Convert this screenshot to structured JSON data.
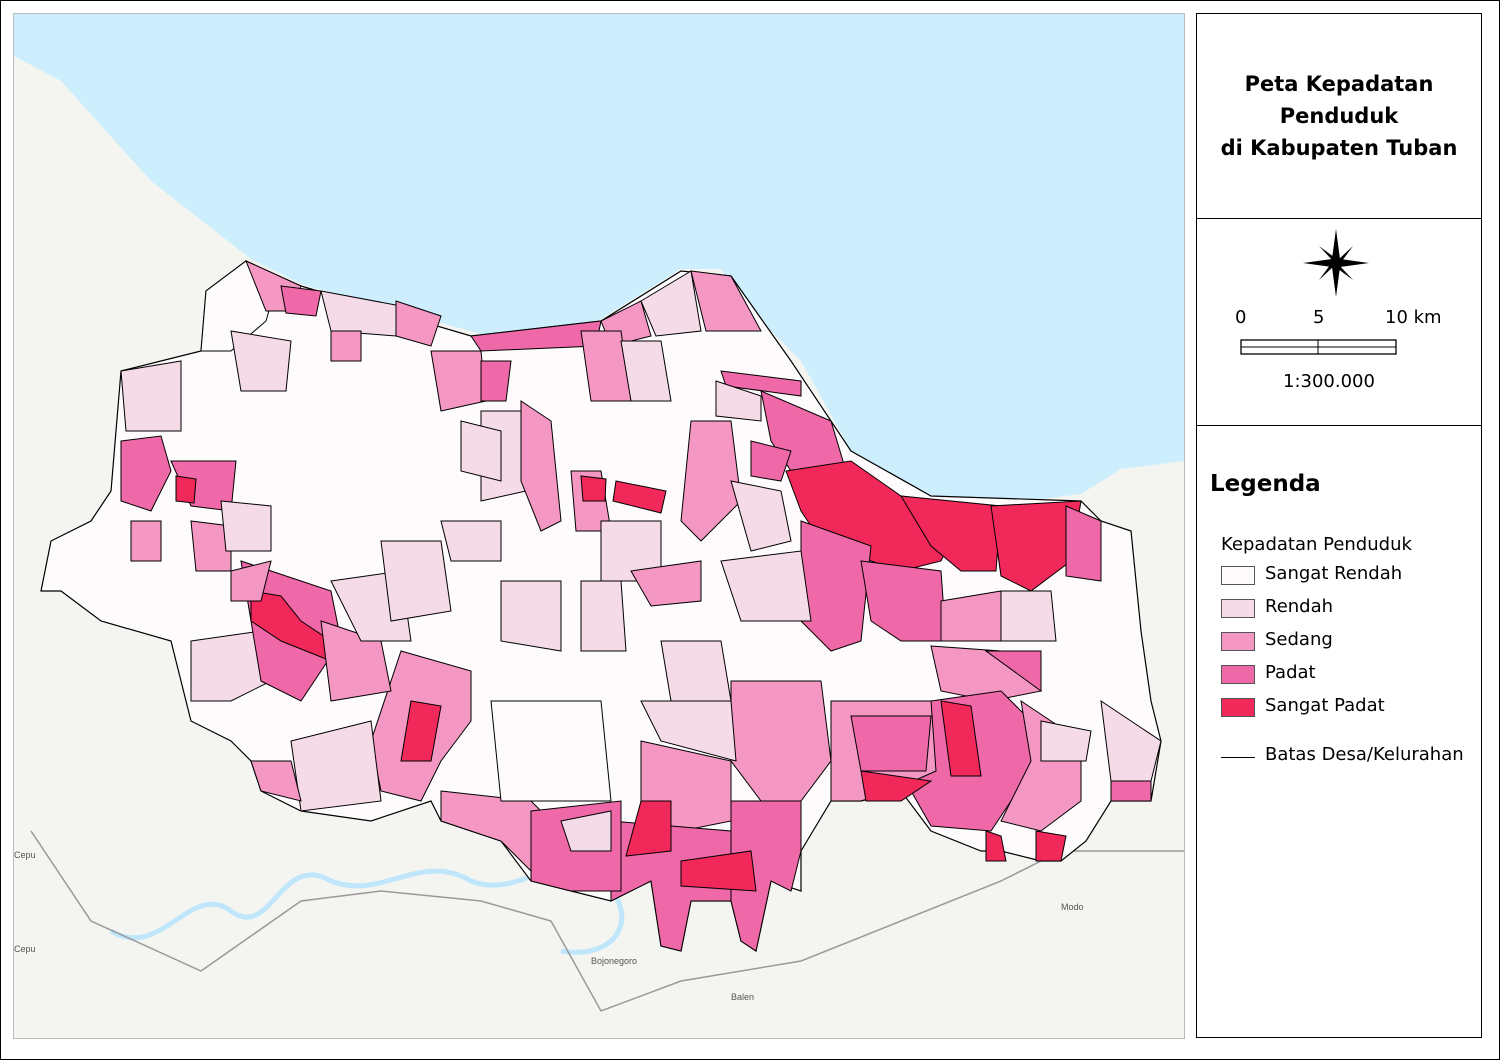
{
  "title": {
    "line1": "Peta Kepadatan",
    "line2": "Penduduk",
    "line3": "di Kabupaten Tuban"
  },
  "north_arrow": "compass-star-icon",
  "scale_bar": {
    "ticks": [
      "0",
      "5",
      "10 km"
    ],
    "ratio": "1:300.000"
  },
  "legend": {
    "heading": "Legenda",
    "group": "Kepadatan Penduduk",
    "classes": [
      {
        "label": "Sangat Rendah",
        "color": "#fefbfd"
      },
      {
        "label": "Rendah",
        "color": "#f5dbe7"
      },
      {
        "label": "Sedang",
        "color": "#f497c3"
      },
      {
        "label": "Padat",
        "color": "#ef68a8"
      },
      {
        "label": "Sangat Padat",
        "color": "#f1285a"
      }
    ],
    "boundary": "Batas Desa/Kelurahan"
  },
  "basemap_labels": {
    "city1": "Bojonegoro",
    "city2": "Balen",
    "city3": "Modo",
    "city4": "Cepu",
    "city5": "Cepu"
  },
  "colors": {
    "sea": "#cdeefd",
    "land": "#f4f5f1"
  }
}
